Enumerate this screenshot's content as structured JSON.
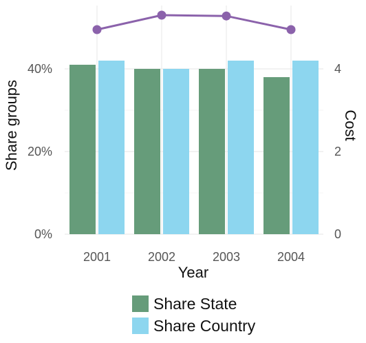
{
  "chart_data": {
    "type": "bar",
    "categories": [
      "2001",
      "2002",
      "2003",
      "2004"
    ],
    "series": [
      {
        "name": "Share State",
        "values": [
          0.41,
          0.4,
          0.4,
          0.38
        ],
        "color": "#669c7a"
      },
      {
        "name": "Share Country",
        "values": [
          0.42,
          0.4,
          0.42,
          0.42
        ],
        "color": "#8dd6ef"
      }
    ],
    "line_series": {
      "name": "Cost",
      "values": [
        4.95,
        5.3,
        5.28,
        4.95
      ],
      "color": "#8b62ab",
      "axis": "right"
    },
    "xlabel": "Year",
    "ylabel": "Share groups",
    "y2label": "Cost",
    "ylim": [
      0,
      0.5
    ],
    "y2lim": [
      0,
      5
    ],
    "yticks": [
      {
        "value": 0,
        "label": "0%"
      },
      {
        "value": 0.2,
        "label": "20%"
      },
      {
        "value": 0.4,
        "label": "40%"
      }
    ],
    "y2ticks": [
      {
        "value": 0,
        "label": "0"
      },
      {
        "value": 2,
        "label": "2"
      },
      {
        "value": 4,
        "label": "4"
      }
    ],
    "grid": true,
    "legend_position": "bottom"
  }
}
